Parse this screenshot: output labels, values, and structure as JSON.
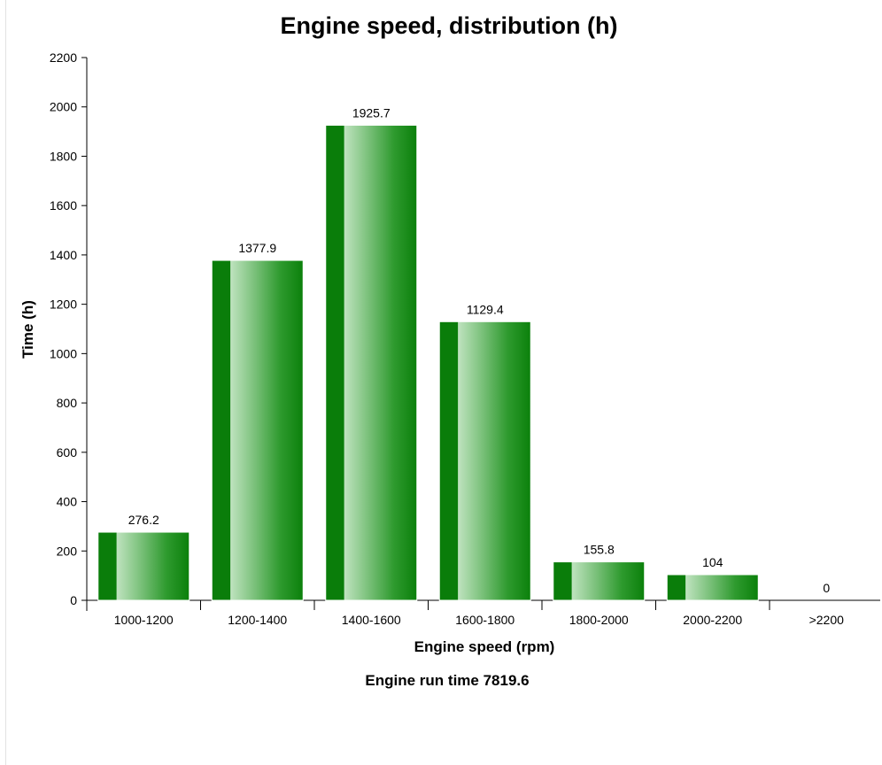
{
  "chart_data": {
    "type": "bar",
    "title": "Engine speed, distribution (h)",
    "xlabel": "Engine speed (rpm)",
    "ylabel": "Time (h)",
    "categories": [
      "1000-1200",
      "1200-1400",
      "1400-1600",
      "1600-1800",
      "1800-2000",
      "2000-2200",
      ">2200"
    ],
    "values": [
      276.2,
      1377.9,
      1925.7,
      1129.4,
      155.8,
      104,
      0
    ],
    "data_labels": [
      "276.2",
      "1377.9",
      "1925.7",
      "1129.4",
      "155.8",
      "104",
      "0"
    ],
    "ylim": [
      0,
      2200
    ],
    "yticks": [
      "0",
      "200",
      "400",
      "600",
      "800",
      "1000",
      "1200",
      "1400",
      "1600",
      "1800",
      "2000",
      "2200"
    ],
    "grid": false,
    "legend": "none",
    "bar_color": "#008000",
    "footer": "Engine run time 7819.6"
  }
}
